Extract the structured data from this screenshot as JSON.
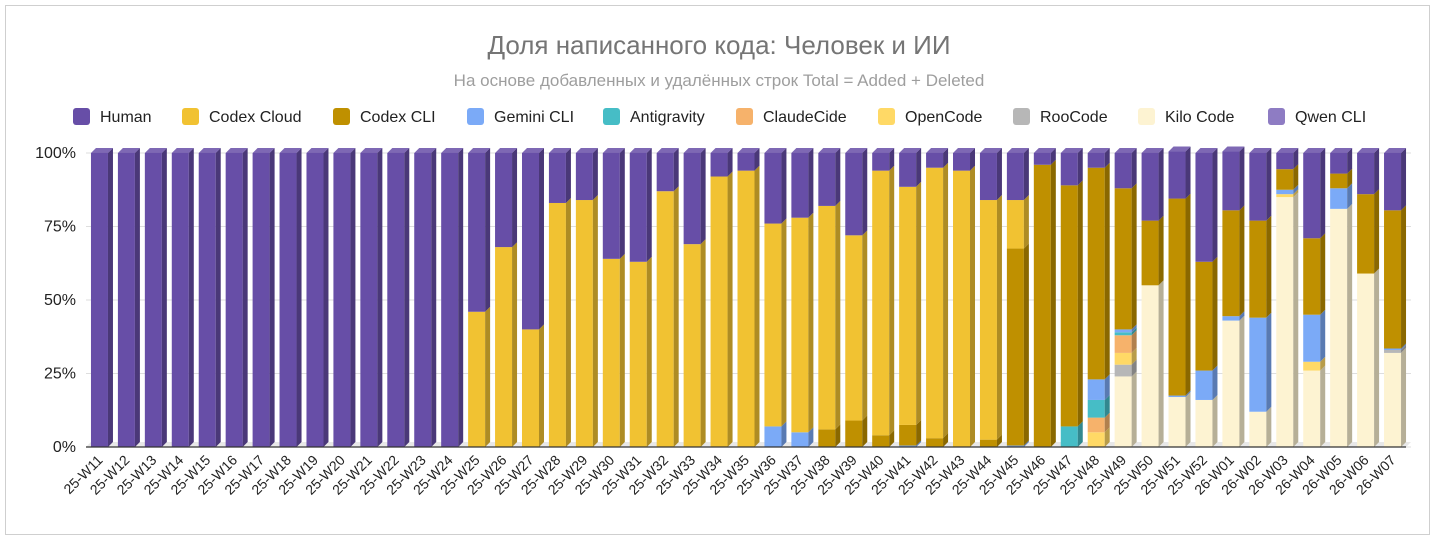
{
  "chart_data": {
    "type": "bar",
    "stacked": true,
    "normalized": true,
    "title": "Доля написанного кода: Человек и ИИ",
    "subtitle": "На основе добавленных и удалённых строк Total = Added + Deleted",
    "ylim": [
      0,
      100
    ],
    "yticks": [
      "0%",
      "25%",
      "50%",
      "75%",
      "100%"
    ],
    "legend_position": "top",
    "categories": [
      "25-W11",
      "25-W12",
      "25-W13",
      "25-W14",
      "25-W15",
      "25-W16",
      "25-W17",
      "25-W18",
      "25-W19",
      "25-W20",
      "25-W21",
      "25-W22",
      "25-W23",
      "25-W24",
      "25-W25",
      "25-W26",
      "25-W27",
      "25-W28",
      "25-W29",
      "25-W30",
      "25-W31",
      "25-W32",
      "25-W33",
      "25-W34",
      "25-W35",
      "25-W36",
      "25-W37",
      "25-W38",
      "25-W39",
      "25-W40",
      "25-W41",
      "25-W42",
      "25-W43",
      "25-W44",
      "25-W45",
      "25-W46",
      "25-W47",
      "25-W48",
      "25-W49",
      "25-W50",
      "25-W51",
      "25-W52",
      "26-W01",
      "26-W02",
      "26-W03",
      "26-W04",
      "26-W05",
      "26-W06",
      "26-W07"
    ],
    "series": [
      {
        "name": "Kilo Code",
        "color": "#fdf3d2",
        "values": [
          0,
          0,
          0,
          0,
          0,
          0,
          0,
          0,
          0,
          0,
          0,
          0,
          0,
          0,
          0,
          0,
          0,
          0,
          0,
          0,
          0,
          0,
          0,
          0,
          0,
          0,
          0,
          0,
          0,
          0,
          0,
          0,
          0,
          0,
          0,
          0,
          0,
          0,
          24,
          55,
          17,
          16,
          43,
          12,
          85,
          26,
          81,
          59,
          32
        ]
      },
      {
        "name": "RooCode",
        "color": "#b7b7b7",
        "values": [
          0,
          0,
          0,
          0,
          0,
          0,
          0,
          0,
          0,
          0,
          0,
          0,
          0,
          0,
          0,
          0,
          0,
          0,
          0,
          0,
          0,
          0,
          0,
          0,
          0,
          0,
          0,
          0,
          0,
          0,
          0,
          0,
          0,
          0,
          0,
          0,
          0,
          0,
          4,
          0,
          0,
          0,
          0,
          0,
          0,
          0,
          0,
          0,
          1
        ]
      },
      {
        "name": "OpenCode",
        "color": "#ffd966",
        "values": [
          0,
          0,
          0,
          0,
          0,
          0,
          0,
          0,
          0,
          0,
          0,
          0,
          0,
          0,
          0,
          0,
          0,
          0,
          0,
          0,
          0,
          0,
          0,
          0,
          0,
          0,
          0,
          0,
          0,
          0,
          0,
          0,
          0,
          0,
          0,
          0,
          0,
          5,
          4,
          0,
          0,
          0,
          0,
          0,
          1,
          3,
          0,
          0,
          0
        ]
      },
      {
        "name": "ClaudeCide",
        "color": "#f6b26b",
        "values": [
          0,
          0,
          0,
          0,
          0,
          0,
          0,
          0,
          0,
          0,
          0,
          0,
          0,
          0,
          0,
          0,
          0,
          0,
          0,
          0,
          0,
          0,
          0,
          0,
          0,
          0,
          0,
          0,
          0,
          0,
          0,
          0,
          0,
          0,
          0,
          0,
          0,
          5,
          6,
          0,
          0,
          0,
          0,
          0,
          0,
          0,
          0,
          0,
          0
        ]
      },
      {
        "name": "Antigravity",
        "color": "#46bdc6",
        "values": [
          0,
          0,
          0,
          0,
          0,
          0,
          0,
          0,
          0,
          0,
          0,
          0,
          0,
          0,
          0,
          0,
          0,
          0,
          0,
          0,
          0,
          0,
          0,
          0,
          0,
          0,
          0,
          0,
          0,
          0,
          0,
          0,
          0,
          0,
          0,
          0,
          7,
          6,
          1,
          0,
          0,
          0,
          0,
          0,
          0,
          0,
          0,
          0,
          0
        ]
      },
      {
        "name": "Gemini CLI",
        "color": "#7baaf7",
        "values": [
          0,
          0,
          0,
          0,
          0,
          0,
          0,
          0,
          0,
          0,
          0,
          0,
          0,
          0,
          0,
          0,
          0,
          0,
          0,
          0,
          0,
          0,
          0,
          0,
          0,
          7,
          5,
          0,
          0,
          0,
          0.5,
          0,
          0,
          0,
          0.5,
          0,
          0,
          7,
          1,
          0,
          0.5,
          10,
          1.5,
          32,
          1.5,
          16,
          7,
          0,
          0.5
        ]
      },
      {
        "name": "Codex CLI",
        "color": "#bf9000",
        "values": [
          0,
          0,
          0,
          0,
          0,
          0,
          0,
          0,
          0,
          0,
          0,
          0,
          0,
          0,
          0,
          0,
          0,
          0,
          0,
          0,
          0,
          0,
          0,
          0,
          0,
          0,
          0,
          6,
          9,
          4,
          7,
          3,
          0,
          2.5,
          67,
          96,
          82,
          72,
          48,
          22,
          67,
          37,
          36,
          33,
          7,
          26,
          5,
          27,
          47
        ]
      },
      {
        "name": "Codex Cloud",
        "color": "#f1c232",
        "values": [
          0,
          0,
          0,
          0,
          0,
          0,
          0,
          0,
          0,
          0,
          0,
          0,
          0,
          0,
          46,
          68,
          40,
          83,
          84,
          64,
          63,
          87,
          69,
          92,
          94,
          69,
          73,
          76,
          63,
          90,
          81,
          92,
          94,
          81.5,
          16.5,
          0,
          0,
          0,
          0,
          0,
          0,
          0,
          0,
          0,
          0,
          0,
          0,
          0,
          0
        ]
      },
      {
        "name": "Qwen CLI",
        "color": "#8e7cc3",
        "values": [
          0,
          0,
          0,
          0,
          0,
          0,
          0,
          0,
          0,
          0,
          0,
          0,
          0,
          0,
          0,
          0,
          0,
          0,
          0,
          0,
          0,
          0,
          0,
          0,
          0,
          0,
          0,
          0,
          0,
          0,
          0,
          0,
          0,
          0,
          0,
          0,
          0,
          0,
          0,
          0,
          0,
          0,
          0,
          0,
          0,
          0,
          0,
          0,
          0
        ]
      },
      {
        "name": "Human",
        "color": "#674ea7",
        "values": [
          100,
          100,
          100,
          100,
          100,
          100,
          100,
          100,
          100,
          100,
          100,
          100,
          100,
          100,
          54,
          32,
          60,
          17,
          16,
          36,
          37,
          13,
          31,
          8,
          6,
          24,
          22,
          18,
          28,
          6,
          11.5,
          5,
          6,
          16,
          16,
          4,
          11,
          5,
          12,
          23,
          16,
          37,
          20,
          23,
          5.5,
          29,
          7,
          14,
          19.5
        ]
      }
    ],
    "legend_order": [
      "Human",
      "Codex Cloud",
      "Codex CLI",
      "Gemini CLI",
      "Antigravity",
      "ClaudeCide",
      "OpenCode",
      "RooCode",
      "Kilo Code",
      "Qwen CLI"
    ]
  }
}
